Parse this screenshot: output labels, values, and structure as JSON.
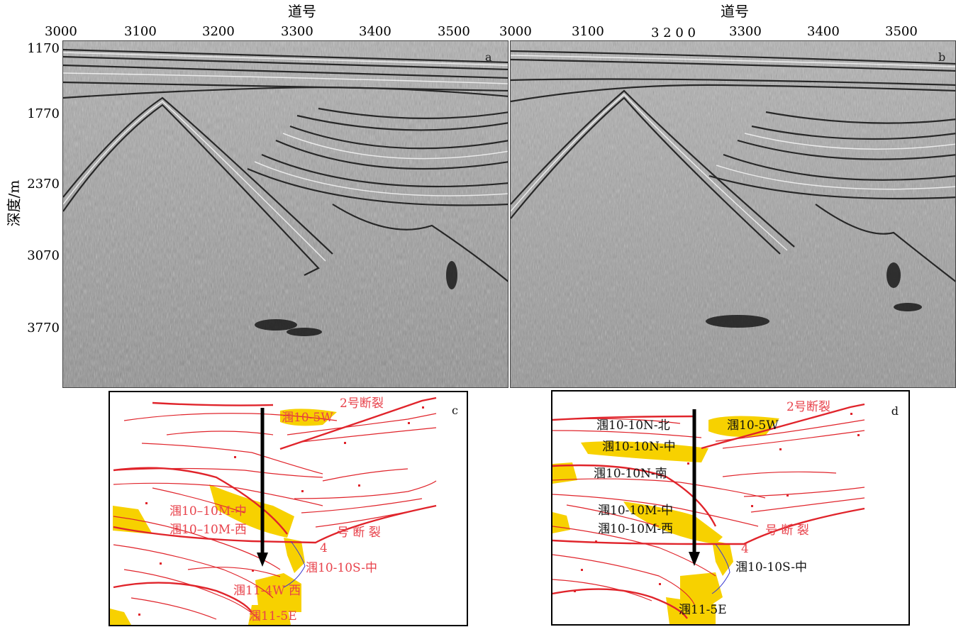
{
  "x_axis": {
    "title_left": "道号",
    "title_right": "道号",
    "ticks_left": [
      "3000",
      "3100",
      "3200",
      "3300",
      "3400",
      "3500"
    ],
    "ticks_right": [
      "3000",
      "3100",
      "3 2 0 0",
      "3300",
      "3400",
      "3500"
    ]
  },
  "y_axis": {
    "title": "深度/m",
    "ticks": [
      "1170",
      "1770",
      "2370",
      "3070",
      "3770"
    ]
  },
  "panels": {
    "a": "a",
    "b": "b",
    "c": "c",
    "d": "d"
  },
  "map_c": {
    "labels": {
      "fault2": "2号断裂",
      "w5": "涠10-5W",
      "m_mid": "涠10–10M-中",
      "m_west": "涠10–10M-西",
      "fault4_num": "4",
      "fault4_text": "号 断 裂",
      "s_mid": "涠10-10S-中",
      "e4w": "涠11-4W 西",
      "e5": "涠11-5E"
    }
  },
  "map_d": {
    "labels": {
      "n_north": "涠10-10N-北",
      "w5": "涠10-5W",
      "fault2": "2号断裂",
      "n_mid": "涠10-10N-中",
      "n_south": "涠10-10N-南",
      "m_mid": "涠10-10M-中",
      "m_west": "涠10-10M-西",
      "fault4_num": "4",
      "fault4_text": "号 断 裂",
      "s_mid": "涠10-10S-中",
      "e5": "涠11-5E"
    }
  },
  "colors": {
    "fault": "#e0242b",
    "field": "#f7d100",
    "arrow": "#000000"
  }
}
